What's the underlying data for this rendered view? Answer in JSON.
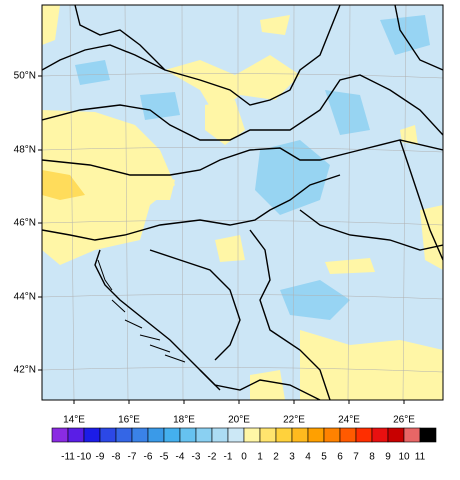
{
  "map": {
    "lat_labels": [
      "50°N",
      "48°N",
      "46°N",
      "44°N",
      "42°N"
    ],
    "lon_labels": [
      "14°E",
      "16°E",
      "18°E",
      "20°E",
      "22°E",
      "24°E",
      "26°E"
    ],
    "colorbar": {
      "labels": [
        "-11",
        "-10",
        "-9",
        "-8",
        "-7",
        "-6",
        "-5",
        "-4",
        "-3",
        "-2",
        "-1",
        "0",
        "1",
        "2",
        "3",
        "4",
        "5",
        "6",
        "7",
        "8",
        "9",
        "10",
        "11"
      ],
      "colors": [
        "#8a2be2",
        "#5a1ee6",
        "#1c1ce8",
        "#2c48e6",
        "#3466e6",
        "#3a82e8",
        "#3a9ae8",
        "#44b0ee",
        "#66c2f0",
        "#8ad0f2",
        "#acdcf4",
        "#cce8f6",
        "#fff6a6",
        "#ffe46e",
        "#ffd23c",
        "#ffba1e",
        "#ffa000",
        "#ff8200",
        "#ff5a00",
        "#ff2e00",
        "#e81010",
        "#c80000",
        "#e86666",
        "#000000"
      ]
    }
  }
}
